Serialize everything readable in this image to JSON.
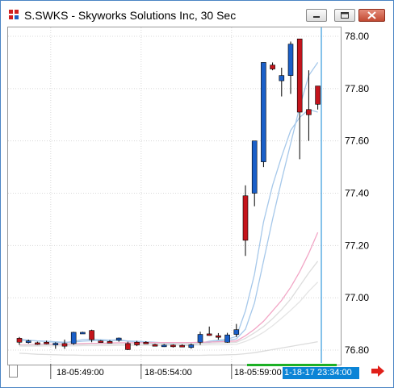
{
  "window": {
    "title": "S.SWKS - Skyworks Solutions Inc, 30 Sec",
    "icon": "app-logo-icon",
    "buttons": [
      "minimize-icon",
      "maximize-icon",
      "close-icon"
    ],
    "accent_color": "#4a84c4"
  },
  "time_axis": {
    "labels": [
      "18-05:49:00",
      "18-05:54:00",
      "18-05:59:00"
    ],
    "cursor_time": "1-18-17 23:34:00",
    "scroll_arrow": "right-arrow-icon",
    "scroll_arrow_color": "#e0201a"
  },
  "chart_data": {
    "type": "candlestick",
    "y_axis": {
      "position": "right",
      "ticks": [
        "78.00",
        "77.80",
        "77.60",
        "77.40",
        "77.20",
        "77.00",
        "76.80"
      ],
      "tick_values": [
        78.0,
        77.8,
        77.6,
        77.4,
        77.2,
        77.0,
        76.8
      ],
      "ylim": [
        76.77,
        78.03
      ]
    },
    "x_axis": {
      "labels": [
        "18-05:49:00",
        "18-05:54:00",
        "18-05:59:00"
      ],
      "label_bar_index": [
        4,
        14,
        24
      ]
    },
    "grid": "dotted",
    "up_color": "#1a5fc8",
    "down_color": "#c4141c",
    "candles": [
      {
        "o": 76.845,
        "h": 76.85,
        "l": 76.82,
        "c": 76.83
      },
      {
        "o": 76.83,
        "h": 76.84,
        "l": 76.825,
        "c": 76.835
      },
      {
        "o": 76.828,
        "h": 76.832,
        "l": 76.82,
        "c": 76.826
      },
      {
        "o": 76.83,
        "h": 76.836,
        "l": 76.822,
        "c": 76.828
      },
      {
        "o": 76.82,
        "h": 76.83,
        "l": 76.805,
        "c": 76.826
      },
      {
        "o": 76.825,
        "h": 76.84,
        "l": 76.805,
        "c": 76.815
      },
      {
        "o": 76.825,
        "h": 76.87,
        "l": 76.82,
        "c": 76.868
      },
      {
        "o": 76.866,
        "h": 76.87,
        "l": 76.862,
        "c": 76.868
      },
      {
        "o": 76.875,
        "h": 76.878,
        "l": 76.83,
        "c": 76.84
      },
      {
        "o": 76.835,
        "h": 76.838,
        "l": 76.83,
        "c": 76.834
      },
      {
        "o": 76.833,
        "h": 76.838,
        "l": 76.828,
        "c": 76.831
      },
      {
        "o": 76.838,
        "h": 76.848,
        "l": 76.832,
        "c": 76.846
      },
      {
        "o": 76.825,
        "h": 76.832,
        "l": 76.8,
        "c": 76.802
      },
      {
        "o": 76.83,
        "h": 76.835,
        "l": 76.815,
        "c": 76.82
      },
      {
        "o": 76.83,
        "h": 76.834,
        "l": 76.824,
        "c": 76.827
      },
      {
        "o": 76.821,
        "h": 76.824,
        "l": 76.815,
        "c": 76.817
      },
      {
        "o": 76.817,
        "h": 76.823,
        "l": 76.812,
        "c": 76.819
      },
      {
        "o": 76.819,
        "h": 76.822,
        "l": 76.81,
        "c": 76.814
      },
      {
        "o": 76.818,
        "h": 76.822,
        "l": 76.812,
        "c": 76.816
      },
      {
        "o": 76.81,
        "h": 76.825,
        "l": 76.805,
        "c": 76.82
      },
      {
        "o": 76.83,
        "h": 76.87,
        "l": 76.82,
        "c": 76.86
      },
      {
        "o": 76.862,
        "h": 76.89,
        "l": 76.855,
        "c": 76.86
      },
      {
        "o": 76.855,
        "h": 76.865,
        "l": 76.84,
        "c": 76.85
      },
      {
        "o": 76.83,
        "h": 76.866,
        "l": 76.828,
        "c": 76.858
      },
      {
        "o": 76.86,
        "h": 76.9,
        "l": 76.85,
        "c": 76.878
      },
      {
        "o": 77.39,
        "h": 77.43,
        "l": 77.16,
        "c": 77.22
      },
      {
        "o": 77.4,
        "h": 77.6,
        "l": 77.35,
        "c": 77.6
      },
      {
        "o": 77.52,
        "h": 77.9,
        "l": 77.5,
        "c": 77.9
      },
      {
        "o": 77.89,
        "h": 77.9,
        "l": 77.87,
        "c": 77.875
      },
      {
        "o": 77.83,
        "h": 77.88,
        "l": 77.77,
        "c": 77.85
      },
      {
        "o": 77.85,
        "h": 77.98,
        "l": 77.78,
        "c": 77.97
      },
      {
        "o": 77.99,
        "h": 77.99,
        "l": 77.53,
        "c": 77.71
      },
      {
        "o": 77.72,
        "h": 77.87,
        "l": 77.6,
        "c": 77.7
      },
      {
        "o": 77.81,
        "h": 77.81,
        "l": 77.72,
        "c": 77.74
      }
    ],
    "moving_averages": [
      {
        "color": "#a6c8ea",
        "values": [
          76.842,
          76.838,
          76.835,
          76.833,
          76.83,
          76.828,
          76.834,
          76.84,
          76.842,
          76.84,
          76.838,
          76.84,
          76.834,
          76.832,
          76.83,
          76.826,
          76.823,
          76.82,
          76.818,
          76.818,
          76.826,
          76.834,
          76.838,
          76.842,
          76.852,
          76.95,
          77.09,
          77.29,
          77.43,
          77.54,
          77.64,
          77.69,
          77.72,
          77.71
        ]
      },
      {
        "color": "#a6c8ea",
        "values": [
          76.838,
          76.837,
          76.835,
          76.834,
          76.832,
          76.83,
          76.831,
          76.834,
          76.836,
          76.836,
          76.836,
          76.837,
          76.835,
          76.834,
          76.832,
          76.83,
          76.828,
          76.826,
          76.824,
          76.823,
          76.826,
          76.83,
          76.834,
          76.837,
          76.843,
          76.88,
          76.98,
          77.14,
          77.3,
          77.45,
          77.59,
          77.73,
          77.85,
          77.9
        ]
      },
      {
        "color": "#f2a6c6",
        "values": [
          76.82,
          76.821,
          76.822,
          76.822,
          76.823,
          76.823,
          76.824,
          76.825,
          76.826,
          76.826,
          76.827,
          76.828,
          76.828,
          76.828,
          76.829,
          76.829,
          76.829,
          76.829,
          76.829,
          76.829,
          76.83,
          76.831,
          76.832,
          76.833,
          76.835,
          76.855,
          76.88,
          76.91,
          76.95,
          76.99,
          77.04,
          77.1,
          77.17,
          77.25
        ]
      },
      {
        "color": "#dddddd",
        "values": [
          76.818,
          76.819,
          76.819,
          76.82,
          76.82,
          76.82,
          76.821,
          76.821,
          76.822,
          76.822,
          76.822,
          76.823,
          76.823,
          76.823,
          76.823,
          76.824,
          76.824,
          76.824,
          76.824,
          76.824,
          76.825,
          76.826,
          76.827,
          76.828,
          76.83,
          76.845,
          76.866,
          76.89,
          76.92,
          76.955,
          76.995,
          77.045,
          77.095,
          77.14
        ]
      },
      {
        "color": "#e4e4e4",
        "values": [
          76.815,
          76.815,
          76.815,
          76.816,
          76.816,
          76.816,
          76.816,
          76.817,
          76.817,
          76.817,
          76.817,
          76.818,
          76.818,
          76.818,
          76.818,
          76.818,
          76.818,
          76.819,
          76.819,
          76.819,
          76.819,
          76.82,
          76.82,
          76.821,
          76.822,
          76.833,
          76.848,
          76.868,
          76.893,
          76.922,
          76.952,
          76.985,
          77.025,
          77.06
        ]
      },
      {
        "color": "#dcdcdc",
        "values": [
          76.788,
          76.786,
          76.784,
          76.783,
          76.782,
          76.781,
          76.781,
          76.78,
          76.78,
          76.78,
          76.78,
          76.78,
          76.78,
          76.78,
          76.78,
          76.78,
          76.78,
          76.78,
          76.78,
          76.78,
          76.78,
          76.781,
          76.781,
          76.782,
          76.783,
          76.786,
          76.79,
          76.796,
          76.802,
          76.808,
          76.814,
          76.82,
          76.826,
          76.832
        ]
      }
    ],
    "cursor_line_color": "#0b84d6"
  }
}
